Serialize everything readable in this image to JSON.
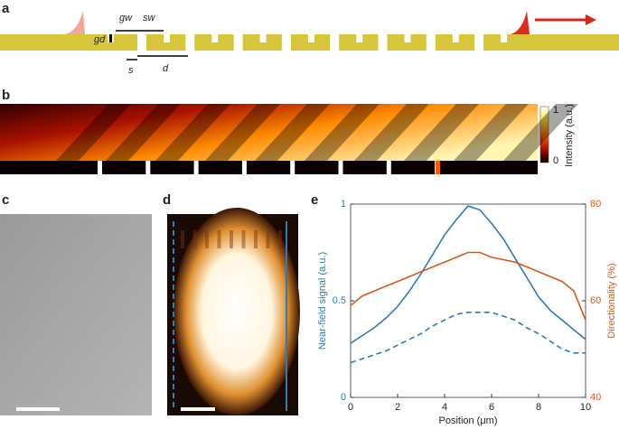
{
  "panels": [
    "a",
    "b",
    "c",
    "d",
    "e"
  ],
  "schematic": {
    "labels": [
      "gw",
      "sw",
      "gd",
      "s",
      "d"
    ]
  },
  "colorbar": {
    "label": "Intensity (a.u.)",
    "ticks": [
      0,
      1
    ]
  },
  "chart_data": {
    "type": "line",
    "xlabel": "Position (μm)",
    "ylabel": "Near-field signal (a.u.)",
    "y2label": "Directionality (%)",
    "x": [
      0,
      0.5,
      1,
      1.5,
      2,
      2.5,
      3,
      3.5,
      4,
      4.5,
      5,
      5.5,
      6,
      6.5,
      7,
      7.5,
      8,
      8.5,
      9,
      9.5,
      10
    ],
    "series": [
      {
        "color": "#2b7bba",
        "linestyle": "solid",
        "values": [
          0.28,
          0.32,
          0.36,
          0.41,
          0.47,
          0.55,
          0.64,
          0.74,
          0.84,
          0.92,
          0.99,
          0.97,
          0.9,
          0.82,
          0.72,
          0.62,
          0.52,
          0.45,
          0.4,
          0.35,
          0.3
        ]
      },
      {
        "color": "#2b7bba",
        "linestyle": "dashed",
        "values": [
          0.18,
          0.2,
          0.22,
          0.24,
          0.27,
          0.3,
          0.33,
          0.37,
          0.4,
          0.43,
          0.44,
          0.44,
          0.44,
          0.42,
          0.4,
          0.36,
          0.33,
          0.29,
          0.25,
          0.23,
          0.23
        ]
      },
      {
        "color": "#d6581c",
        "linestyle": "solid",
        "axis": "y2",
        "values": [
          59,
          61,
          62,
          63,
          64,
          65,
          66,
          67,
          68,
          69,
          70,
          70,
          69,
          68.5,
          68,
          67,
          66,
          65,
          64,
          62,
          56
        ]
      }
    ],
    "xlim": [
      0,
      10
    ],
    "xticks": [
      0,
      2,
      4,
      6,
      8,
      10
    ],
    "ylim": [
      0,
      1
    ],
    "yticks": [
      0,
      0.5,
      1
    ],
    "y2lim": [
      40,
      80
    ],
    "y2ticks": [
      40,
      60,
      80
    ]
  }
}
